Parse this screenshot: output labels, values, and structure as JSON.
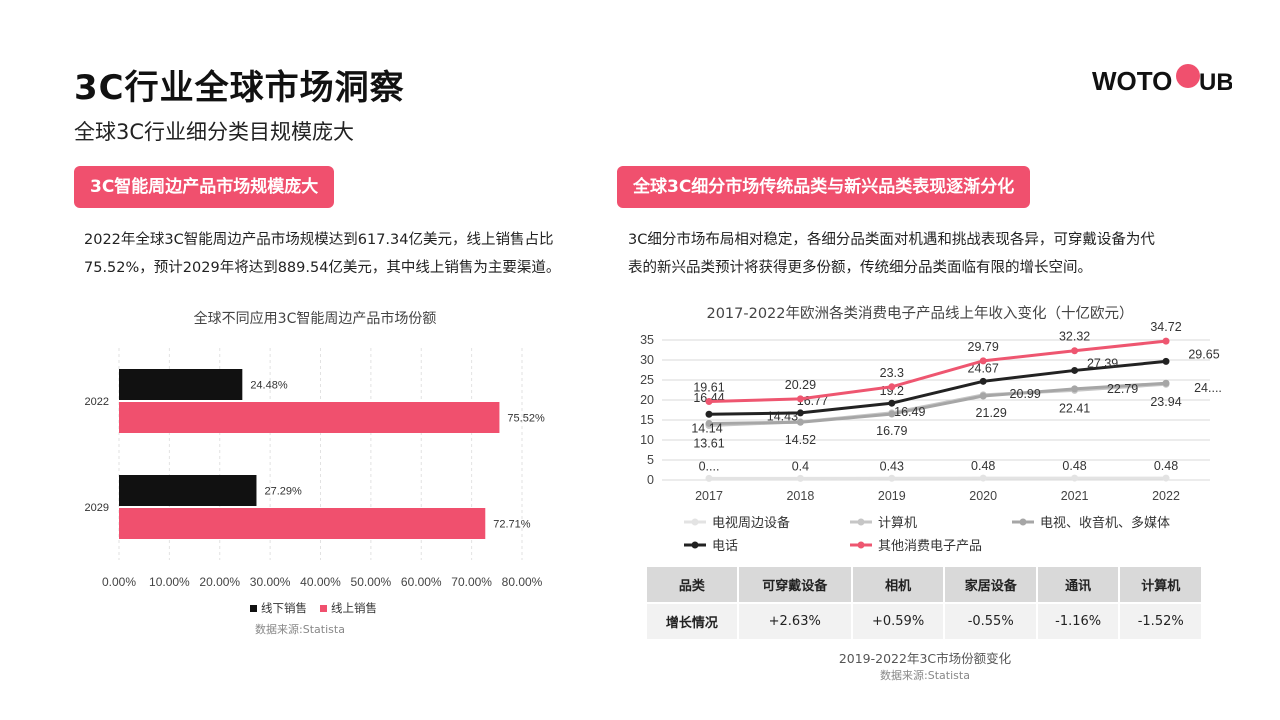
{
  "header": {
    "title": "3C行业全球市场洞察",
    "subtitle": "全球3C行业细分类目规模庞大",
    "logo": {
      "left": "WOTO",
      "right": "UB",
      "accent": "#f0506e"
    }
  },
  "left": {
    "pill": "3C智能周边产品市场规模庞大",
    "paragraph": [
      "2022年全球3C智能周边产品市场规模达到617.34亿美元，线上销售占比",
      "75.52%，预计2029年将达到889.54亿美元，其中线上销售为主要渠道。"
    ],
    "source": "数据来源:Statista"
  },
  "right": {
    "pill": "全球3C细分市场传统品类与新兴品类表现逐渐分化",
    "paragraph": [
      "3C细分市场布局相对稳定，各细分品类面对机遇和挑战表现各异，可穿戴设备为代",
      "表的新兴品类预计将获得更多份额，传统细分品类面临有限的增长空间。"
    ],
    "table": {
      "headers": [
        "品类",
        "可穿戴设备",
        "相机",
        "家居设备",
        "通讯",
        "计算机"
      ],
      "row": [
        "增长情况",
        "+2.63%",
        "+0.59%",
        "-0.55%",
        "-1.16%",
        "-1.52%"
      ]
    },
    "caption": "2019-2022年3C市场份额变化",
    "source": "数据来源:Statista"
  },
  "chart_data": [
    {
      "type": "bar",
      "orientation": "horizontal",
      "title": "全球不同应用3C智能周边产品市场份额",
      "categories": [
        "2022",
        "2029"
      ],
      "series": [
        {
          "name": "线下销售",
          "values": [
            24.48,
            27.29
          ],
          "labels": [
            "24.48%",
            "27.29%"
          ],
          "color": "#111111"
        },
        {
          "name": "线上销售",
          "values": [
            75.52,
            72.71
          ],
          "labels": [
            "75.52%",
            "72.71%"
          ],
          "color": "#f0506e"
        }
      ],
      "xlim": [
        0,
        80
      ],
      "xticks": [
        "0.00%",
        "10.00%",
        "20.00%",
        "30.00%",
        "40.00%",
        "50.00%",
        "60.00%",
        "70.00%",
        "80.00%"
      ],
      "legend": "bottom"
    },
    {
      "type": "line",
      "title": "2017-2022年欧洲各类消费电子产品线上年收入变化（十亿欧元）",
      "x": [
        "2017",
        "2018",
        "2019",
        "2020",
        "2021",
        "2022"
      ],
      "ylim": [
        0,
        35
      ],
      "yticks": [
        "0",
        "5",
        "10",
        "15",
        "20",
        "25",
        "30",
        "35"
      ],
      "grid": true,
      "legend": "bottom",
      "series": [
        {
          "name": "电视周边设备",
          "values": [
            0.4,
            0.4,
            0.43,
            0.48,
            0.48,
            0.48
          ],
          "labels": [
            "0....",
            "0.4",
            "0.43",
            "0.48",
            "0.48",
            "0.48"
          ],
          "color": "#e3e3e3"
        },
        {
          "name": "计算机",
          "values": [
            13.61,
            14.52,
            16.79,
            21.29,
            22.41,
            23.94
          ],
          "labels": [
            "13.61",
            "14.52",
            "16.79",
            "21.29",
            "22.41",
            "23.94"
          ],
          "color": "#c6c6c6"
        },
        {
          "name": "电视、收音机、多媒体",
          "values": [
            14.14,
            14.43,
            16.49,
            20.99,
            22.79,
            24.2
          ],
          "labels": [
            "14.14",
            "14.43",
            "16.49",
            "20.99",
            "22.79",
            "24...."
          ],
          "color": "#a6a6a6"
        },
        {
          "name": "电话",
          "values": [
            16.44,
            16.77,
            19.2,
            24.67,
            27.39,
            29.65
          ],
          "labels": [
            "16.44",
            "16.77",
            "19.2",
            "24.67",
            "27.39",
            "29.65"
          ],
          "color": "#222222"
        },
        {
          "name": "其他消费电子产品",
          "values": [
            19.61,
            20.29,
            23.3,
            29.79,
            32.32,
            34.72
          ],
          "labels": [
            "19.61",
            "20.29",
            "23.3",
            "29.79",
            "32.32",
            "34.72"
          ],
          "color": "#ee5670"
        }
      ]
    }
  ]
}
